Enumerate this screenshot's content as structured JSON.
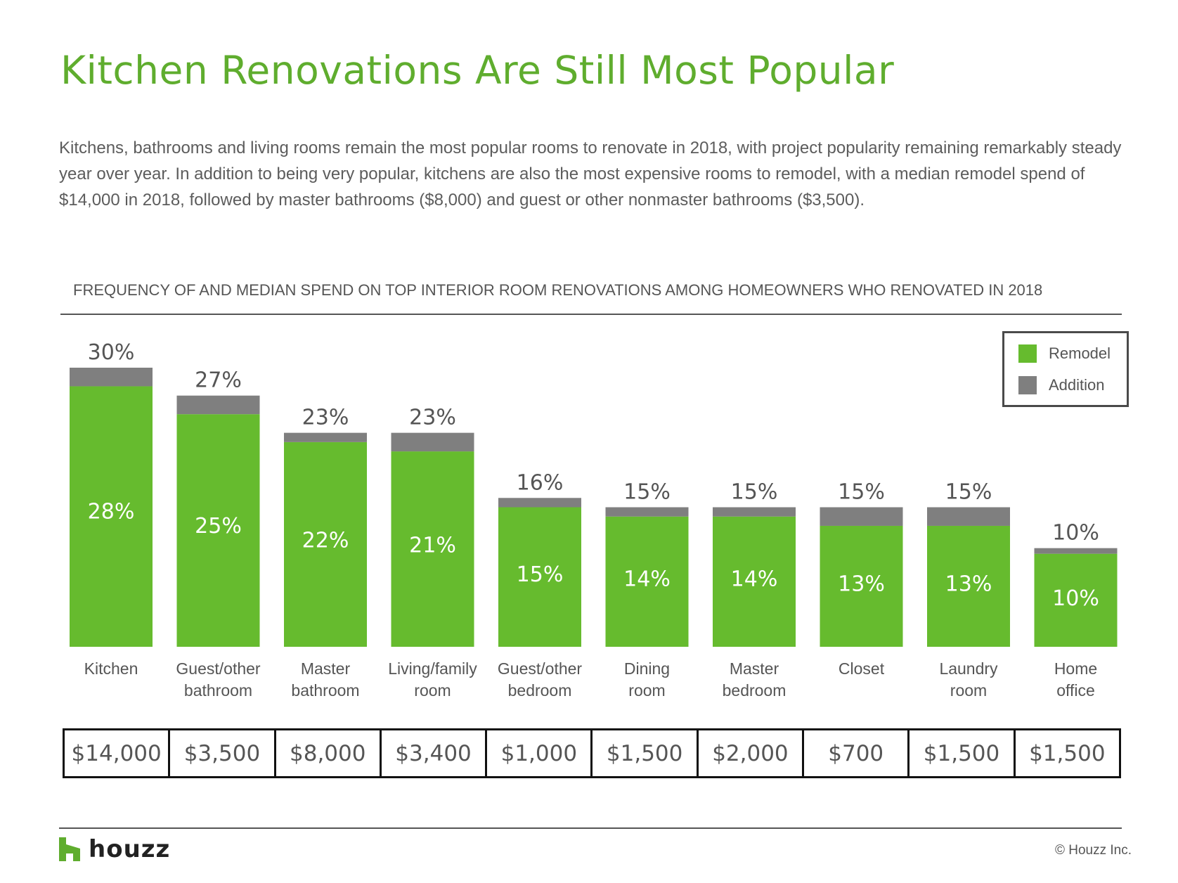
{
  "header": {
    "title": "Kitchen Renovations Are Still Most Popular",
    "intro": "Kitchens, bathrooms and living rooms remain the most popular rooms to renovate in 2018, with project popularity remaining remarkably steady year over year. In addition to being very popular, kitchens are also the most expensive rooms to remodel, with a median remodel spend of $14,000 in 2018, followed by master bathrooms ($8,000) and guest or other nonmaster bathrooms ($3,500)."
  },
  "chart_data": {
    "type": "bar",
    "stacked": true,
    "title": "FREQUENCY OF AND MEDIAN SPEND ON TOP INTERIOR ROOM RENOVATIONS AMONG HOMEOWNERS WHO RENOVATED IN 2018",
    "categories": [
      [
        "Kitchen"
      ],
      [
        "Guest/other",
        "bathroom"
      ],
      [
        "Master",
        "bathroom"
      ],
      [
        "Living/family",
        "room"
      ],
      [
        "Guest/other",
        "bedroom"
      ],
      [
        "Dining",
        "room"
      ],
      [
        "Master",
        "bedroom"
      ],
      [
        "Closet"
      ],
      [
        "Laundry",
        "room"
      ],
      [
        "Home",
        "office"
      ]
    ],
    "totals": [
      30,
      27,
      23,
      23,
      16,
      15,
      15,
      15,
      15,
      10
    ],
    "total_labels": [
      "30%",
      "27%",
      "23%",
      "23%",
      "16%",
      "15%",
      "15%",
      "15%",
      "15%",
      "10%"
    ],
    "series": [
      {
        "name": "Remodel",
        "values": [
          28,
          25,
          22,
          21,
          15,
          14,
          14,
          13,
          13,
          10
        ],
        "labels": [
          "28%",
          "25%",
          "22%",
          "21%",
          "15%",
          "14%",
          "14%",
          "13%",
          "13%",
          "10%"
        ],
        "color": "#66bb2e"
      },
      {
        "name": "Addition",
        "values": [
          2,
          2,
          1,
          2,
          1,
          1,
          1,
          2,
          2,
          0
        ],
        "color": "#7f7f7f"
      }
    ],
    "ylim": [
      0,
      30
    ],
    "grid": false,
    "legend_position": "top-right",
    "median_spend": [
      "$14,000",
      "$3,500",
      "$8,000",
      "$3,400",
      "$1,000",
      "$1,500",
      "$2,000",
      "$700",
      "$1,500",
      "$1,500"
    ]
  },
  "legend": {
    "remodel": "Remodel",
    "addition": "Addition"
  },
  "footer": {
    "brand": "houzz",
    "copyright": "© Houzz Inc."
  },
  "colors": {
    "title": "#5fad2e",
    "remodel": "#66bb2e",
    "addition": "#7f7f7f",
    "text": "#555555"
  }
}
